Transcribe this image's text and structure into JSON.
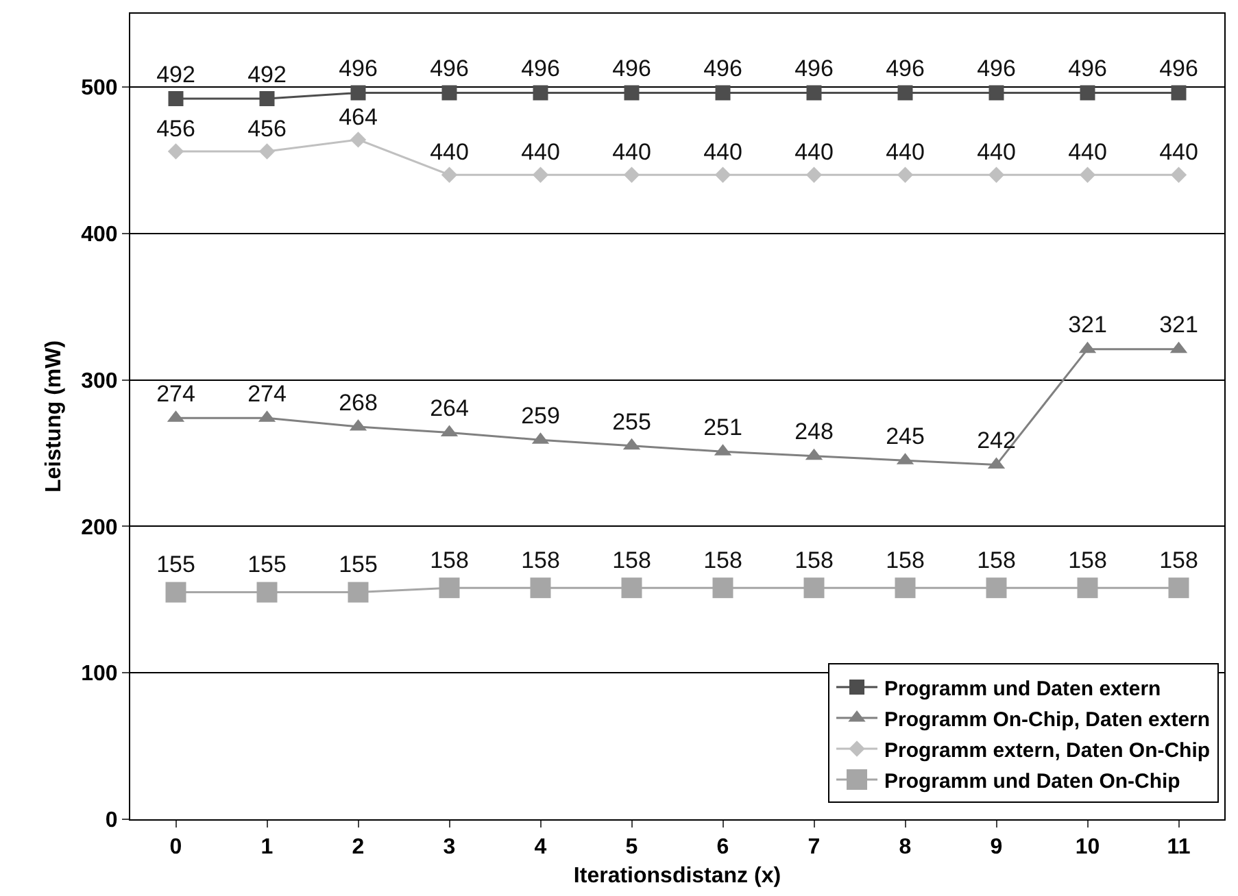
{
  "chart_data": {
    "type": "line",
    "xlabel": "Iterationsdistanz (x)",
    "ylabel": "Leistung (mW)",
    "categories": [
      "0",
      "1",
      "2",
      "3",
      "4",
      "5",
      "6",
      "7",
      "8",
      "9",
      "10",
      "11"
    ],
    "series": [
      {
        "name": "Programm und Daten extern",
        "color": "#4d4d4d",
        "marker": "square",
        "values": [
          492,
          492,
          496,
          496,
          496,
          496,
          496,
          496,
          496,
          496,
          496,
          496
        ]
      },
      {
        "name": "Programm On-Chip, Daten extern",
        "color": "#808080",
        "marker": "triangle",
        "values": [
          274,
          274,
          268,
          264,
          259,
          255,
          251,
          248,
          245,
          242,
          321,
          321
        ]
      },
      {
        "name": "Programm extern, Daten On-Chip",
        "color": "#c0c0c0",
        "marker": "diamond",
        "values": [
          456,
          456,
          464,
          440,
          440,
          440,
          440,
          440,
          440,
          440,
          440,
          440
        ]
      },
      {
        "name": "Programm und Daten On-Chip",
        "color": "#a6a6a6",
        "marker": "square",
        "values": [
          155,
          155,
          155,
          158,
          158,
          158,
          158,
          158,
          158,
          158,
          158,
          158
        ]
      }
    ],
    "ylim": [
      0,
      550
    ],
    "yticks": [
      0,
      100,
      200,
      300,
      400,
      500
    ],
    "grid": "y",
    "legend": "bottom right",
    "data_labels": true,
    "line_style": "solid"
  }
}
